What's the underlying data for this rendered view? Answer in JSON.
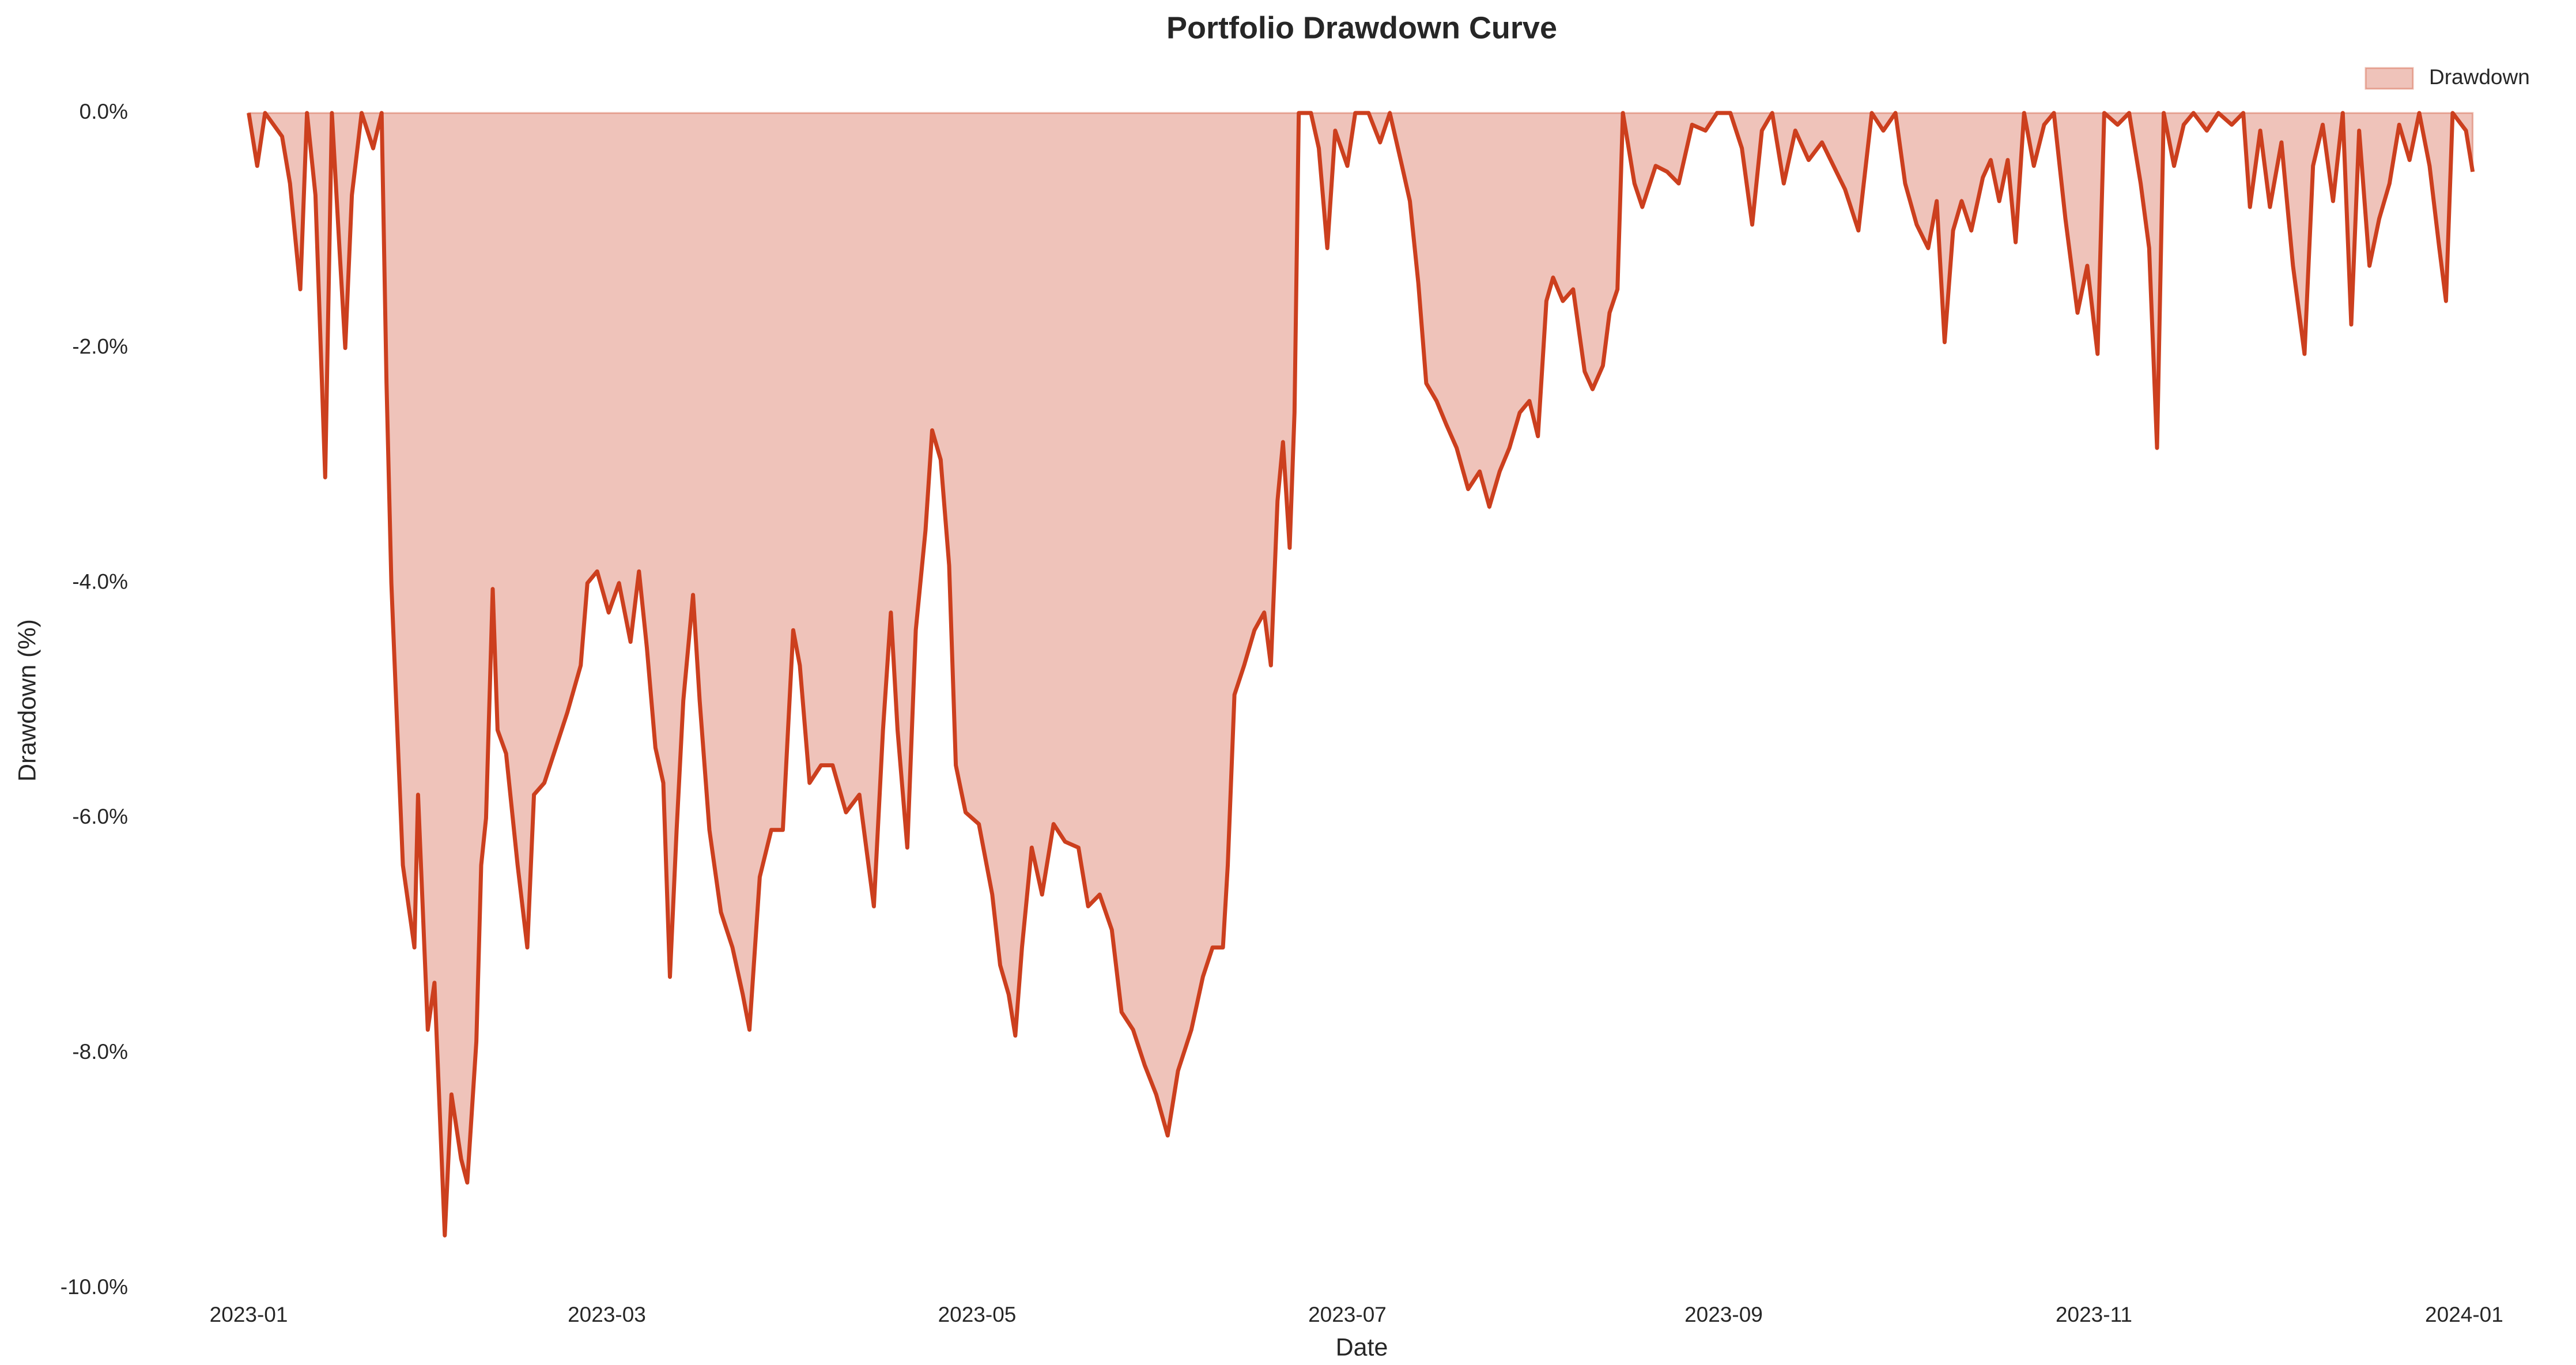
{
  "chart_data": {
    "type": "area",
    "title": "Portfolio Drawdown Curve",
    "x_label": "Date",
    "y_label": "Drawdown (%)",
    "legend": "upper right",
    "grid": false,
    "series": [
      {
        "name": "Drawdown",
        "color": "#cc3f1e",
        "fill_color": "#efc3ba",
        "x": [
          0,
          1.4,
          2.7,
          5.5,
          6.8,
          8.5,
          9.6,
          11,
          12.6,
          13.7,
          15,
          15.9,
          17,
          18.6,
          20.5,
          21.9,
          22.7,
          23.5,
          24.6,
          25.4,
          27.3,
          27.9,
          29.5,
          30.6,
          32.3,
          33.4,
          35,
          36,
          37.5,
          38.3,
          39.1,
          40.2,
          41,
          42.4,
          44.3,
          45.9,
          47,
          48.7,
          50.6,
          52.5,
          54.7,
          55.8,
          57.4,
          59.3,
          61,
          62.9,
          64.3,
          65.6,
          67,
          68.3,
          69.4,
          70.5,
          71.6,
          73.2,
          74.3,
          75.9,
          77.8,
          79.7,
          81.4,
          82.5,
          84.2,
          86.1,
          88,
          89.7,
          90.8,
          92.4,
          94.3,
          96.2,
          98.4,
          100.6,
          103,
          104.5,
          105.8,
          106.9,
          108.5,
          109.9,
          111.5,
          112.6,
          114,
          115.4,
          116.5,
          118.1,
          120.3,
          122.5,
          123.8,
          125.2,
          126.3,
          127.4,
          129,
          130.7,
          132.6,
          134.5,
          136.7,
          138.3,
          140.2,
          142.2,
          143.8,
          145.7,
          147.6,
          149.5,
          151.4,
          153.1,
          155.3,
          157.2,
          158.8,
          160.5,
          161.3,
          162.4,
          164,
          165.7,
          167.3,
          168.4,
          169.5,
          170.4,
          171.5,
          172.3,
          173,
          175,
          176.3,
          177.7,
          179,
          181,
          182.3,
          184.5,
          186.4,
          188,
          190,
          191.3,
          192.7,
          194,
          195.7,
          197.3,
          199,
          200.9,
          202.8,
          204.4,
          206.1,
          207.7,
          209.4,
          211,
          212.4,
          213.8,
          214.9,
          216.5,
          218.2,
          220.1,
          221.4,
          223.1,
          224.2,
          225.5,
          226.4,
          228.3,
          229.6,
          231.8,
          233.7,
          235.6,
          237.8,
          240,
          241.9,
          244.1,
          246,
          247.7,
          249.3,
          251,
          252.9,
          254.8,
          257,
          259.2,
          261.1,
          263,
          265.2,
          267.4,
          269.3,
          271.3,
          272.9,
          274.8,
          276.7,
          278.1,
          279.4,
          280.8,
          282.2,
          283.8,
          285.7,
          287,
          288.4,
          289.8,
          291.1,
          292.5,
          294.1,
          295.8,
          297.4,
          299.3,
          301.3,
          302.9,
          304.6,
          305.7,
          307.9,
          309.8,
          311.7,
          313.1,
          314.4,
          315.5,
          317.2,
          318.8,
          320.4,
          322.6,
          324.5,
          326.7,
          328.6,
          329.7,
          331.4,
          333,
          334.9,
          336.8,
          338.7,
          340.1,
          341.7,
          343.4,
          345,
          346.4,
          347.7,
          349.4,
          351,
          352.7,
          354.3,
          356,
          357.6,
          359.3,
          360.9,
          362,
          363.1,
          365.3,
          366.4
        ],
        "values": [
          0,
          -0.45,
          0,
          -0.2,
          -0.6,
          -1.5,
          0,
          -0.7,
          -3.1,
          0,
          -1.2,
          -2.0,
          -0.7,
          0,
          -0.3,
          0,
          -2.3,
          -4.0,
          -5.4,
          -6.4,
          -7.1,
          -5.8,
          -7.8,
          -7.4,
          -9.55,
          -8.35,
          -8.9,
          -9.1,
          -7.9,
          -6.4,
          -6.0,
          -4.05,
          -5.25,
          -5.45,
          -6.4,
          -7.1,
          -5.8,
          -5.7,
          -5.4,
          -5.1,
          -4.7,
          -4.0,
          -3.9,
          -4.25,
          -4.0,
          -4.5,
          -3.9,
          -4.55,
          -5.4,
          -5.7,
          -7.35,
          -6.1,
          -5.0,
          -4.1,
          -5.0,
          -6.1,
          -6.8,
          -7.1,
          -7.5,
          -7.8,
          -6.5,
          -6.1,
          -6.1,
          -4.4,
          -4.7,
          -5.7,
          -5.55,
          -5.55,
          -5.95,
          -5.8,
          -6.75,
          -5.25,
          -4.25,
          -5.25,
          -6.25,
          -4.4,
          -3.55,
          -2.7,
          -2.95,
          -3.85,
          -5.55,
          -5.95,
          -6.05,
          -6.65,
          -7.25,
          -7.5,
          -7.85,
          -7.1,
          -6.25,
          -6.65,
          -6.05,
          -6.2,
          -6.25,
          -6.75,
          -6.65,
          -6.95,
          -7.65,
          -7.8,
          -8.1,
          -8.35,
          -8.7,
          -8.15,
          -7.8,
          -7.35,
          -7.1,
          -7.1,
          -6.4,
          -4.95,
          -4.7,
          -4.4,
          -4.25,
          -4.7,
          -3.3,
          -2.8,
          -3.7,
          -2.55,
          0,
          0,
          -0.3,
          -1.15,
          -0.15,
          -0.45,
          0,
          0,
          -0.25,
          0,
          -0.45,
          -0.75,
          -1.45,
          -2.3,
          -2.45,
          -2.65,
          -2.85,
          -3.2,
          -3.05,
          -3.35,
          -3.05,
          -2.85,
          -2.55,
          -2.45,
          -2.75,
          -1.6,
          -1.4,
          -1.6,
          -1.5,
          -2.2,
          -2.35,
          -2.15,
          -1.7,
          -1.5,
          0,
          -0.6,
          -0.8,
          -0.45,
          -0.5,
          -0.6,
          -0.1,
          -0.15,
          0,
          0,
          -0.3,
          -0.95,
          -0.15,
          0,
          -0.6,
          -0.15,
          -0.4,
          -0.25,
          -0.45,
          -0.65,
          -1.0,
          0,
          -0.15,
          0,
          -0.6,
          -0.95,
          -1.15,
          -0.75,
          -1.95,
          -1.0,
          -0.75,
          -1.0,
          -0.55,
          -0.4,
          -0.75,
          -0.4,
          -1.1,
          0,
          -0.45,
          -0.1,
          0,
          -0.9,
          -1.7,
          -1.3,
          -2.05,
          0,
          -0.1,
          0,
          -0.6,
          -1.15,
          -2.85,
          0,
          -0.45,
          -0.1,
          0,
          -0.15,
          0,
          -0.1,
          0,
          -0.8,
          -0.15,
          -0.8,
          -0.25,
          -1.3,
          -2.05,
          -0.45,
          -0.1,
          -0.75,
          0,
          -1.8,
          -0.15,
          -1.3,
          -0.9,
          -0.6,
          -0.1,
          -0.4,
          0,
          -0.45,
          -1.15,
          -1.6,
          0,
          -0.15,
          -0.5
        ]
      }
    ],
    "xlim": [
      -18,
      382
    ],
    "xticks": [
      {
        "value": 0,
        "label": "2023-01"
      },
      {
        "value": 59,
        "label": "2023-03"
      },
      {
        "value": 120,
        "label": "2023-05"
      },
      {
        "value": 181,
        "label": "2023-07"
      },
      {
        "value": 243,
        "label": "2023-09"
      },
      {
        "value": 304,
        "label": "2023-11"
      },
      {
        "value": 365,
        "label": "2024-01"
      }
    ],
    "ylim": [
      -10,
      0
    ],
    "yticks": [
      {
        "value": 0,
        "label": "0.0%"
      },
      {
        "value": -2,
        "label": "-2.0%"
      },
      {
        "value": -4,
        "label": "-4.0%"
      },
      {
        "value": -6,
        "label": "-6.0%"
      },
      {
        "value": -8,
        "label": "-8.0%"
      },
      {
        "value": -10,
        "label": "-10.0%"
      }
    ]
  }
}
